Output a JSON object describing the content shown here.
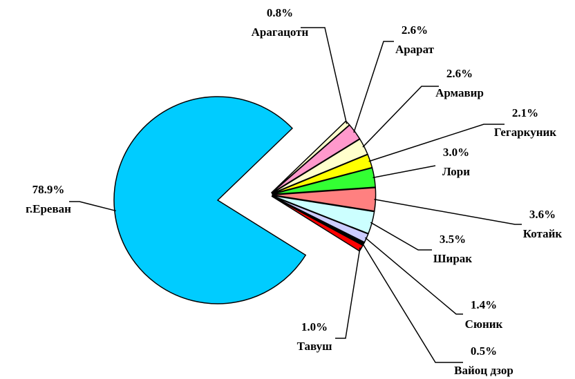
{
  "chart_data": {
    "type": "pie",
    "categories": [
      "г.Ереван",
      "Арагацотн",
      "Арарат",
      "Армавир",
      "Гегаркуник",
      "Лори",
      "Котайк",
      "Ширак",
      "Сюник",
      "Вайоц дзор",
      "Тавуш"
    ],
    "values": [
      78.9,
      0.8,
      2.6,
      2.6,
      2.1,
      3.0,
      3.6,
      3.5,
      1.4,
      0.5,
      1.0
    ],
    "value_labels": [
      "78.9%",
      "0.8%",
      "2.6%",
      "2.6%",
      "2.1%",
      "3.0%",
      "3.6%",
      "3.5%",
      "1.4%",
      "0.5%",
      "1.0%"
    ],
    "colors": [
      "#00ccff",
      "#ffffcc",
      "#ff99cc",
      "#ffffcc",
      "#ffff00",
      "#33ff33",
      "#ff8080",
      "#ccffff",
      "#ccccff",
      "#000000",
      "#ff0000"
    ]
  }
}
